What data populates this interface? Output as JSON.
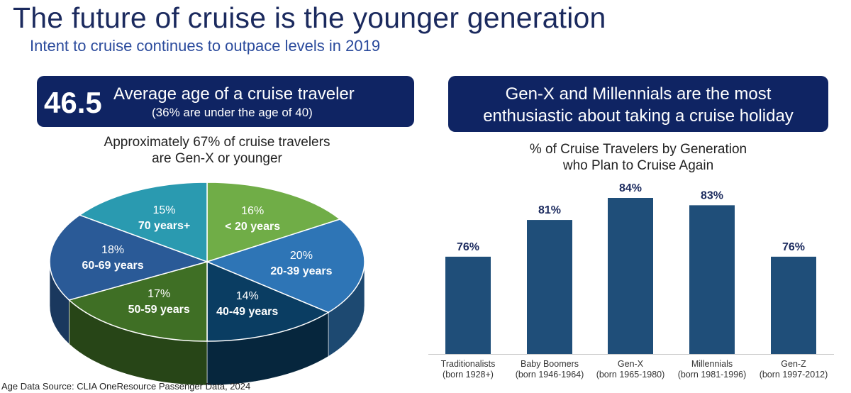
{
  "header": {
    "title": "The future of cruise is the younger generation",
    "subtitle": "Intent to cruise continues to outpace levels in 2019"
  },
  "left_box": {
    "big_number": "46.5",
    "line1": "Average age of a cruise traveler",
    "line2": "(36% are under the age of 40)"
  },
  "pie_caption": {
    "line1": "Approximately 67% of cruise travelers",
    "line2": "are Gen-X or younger"
  },
  "right_box": {
    "line1": "Gen-X and Millennials are the most",
    "line2": "enthusiastic about taking a cruise holiday"
  },
  "bar_caption": {
    "line1": "% of Cruise Travelers by Generation",
    "line2": "who Plan to Cruise Again"
  },
  "source": "Age Data Source: CLIA OneResource Passenger Data, 2024",
  "colors": {
    "navy": "#0f2463",
    "bar": "#1f4e79",
    "bar_label": "#1b2a5e"
  },
  "chart_data": [
    {
      "type": "pie",
      "style": "3d",
      "slices": [
        {
          "pct": "16%",
          "value": 16,
          "label": "< 20 years",
          "color": "#70ad47"
        },
        {
          "pct": "20%",
          "value": 20,
          "label": "20-39 years",
          "color": "#2e75b6"
        },
        {
          "pct": "14%",
          "value": 14,
          "label": "40-49 years",
          "color": "#0a3d62"
        },
        {
          "pct": "17%",
          "value": 17,
          "label": "50-59 years",
          "color": "#3f6f25"
        },
        {
          "pct": "18%",
          "value": 18,
          "label": "60-69 years",
          "color": "#2a5a97"
        },
        {
          "pct": "15%",
          "value": 15,
          "label": "70 years+",
          "color": "#2a9ab0"
        }
      ]
    },
    {
      "type": "bar",
      "categories": [
        {
          "name": "Traditionalists",
          "sub": "(born 1928+)"
        },
        {
          "name": "Baby Boomers",
          "sub": "(born 1946-1964)"
        },
        {
          "name": "Gen-X",
          "sub": "(born 1965-1980)"
        },
        {
          "name": "Millennials",
          "sub": "(born 1981-1996)"
        },
        {
          "name": "Gen-Z",
          "sub": "(born 1997-2012)"
        }
      ],
      "values": [
        76,
        81,
        84,
        83,
        76
      ],
      "value_labels": [
        "76%",
        "81%",
        "84%",
        "83%",
        "76%"
      ],
      "ylim": [
        70,
        85
      ]
    }
  ]
}
